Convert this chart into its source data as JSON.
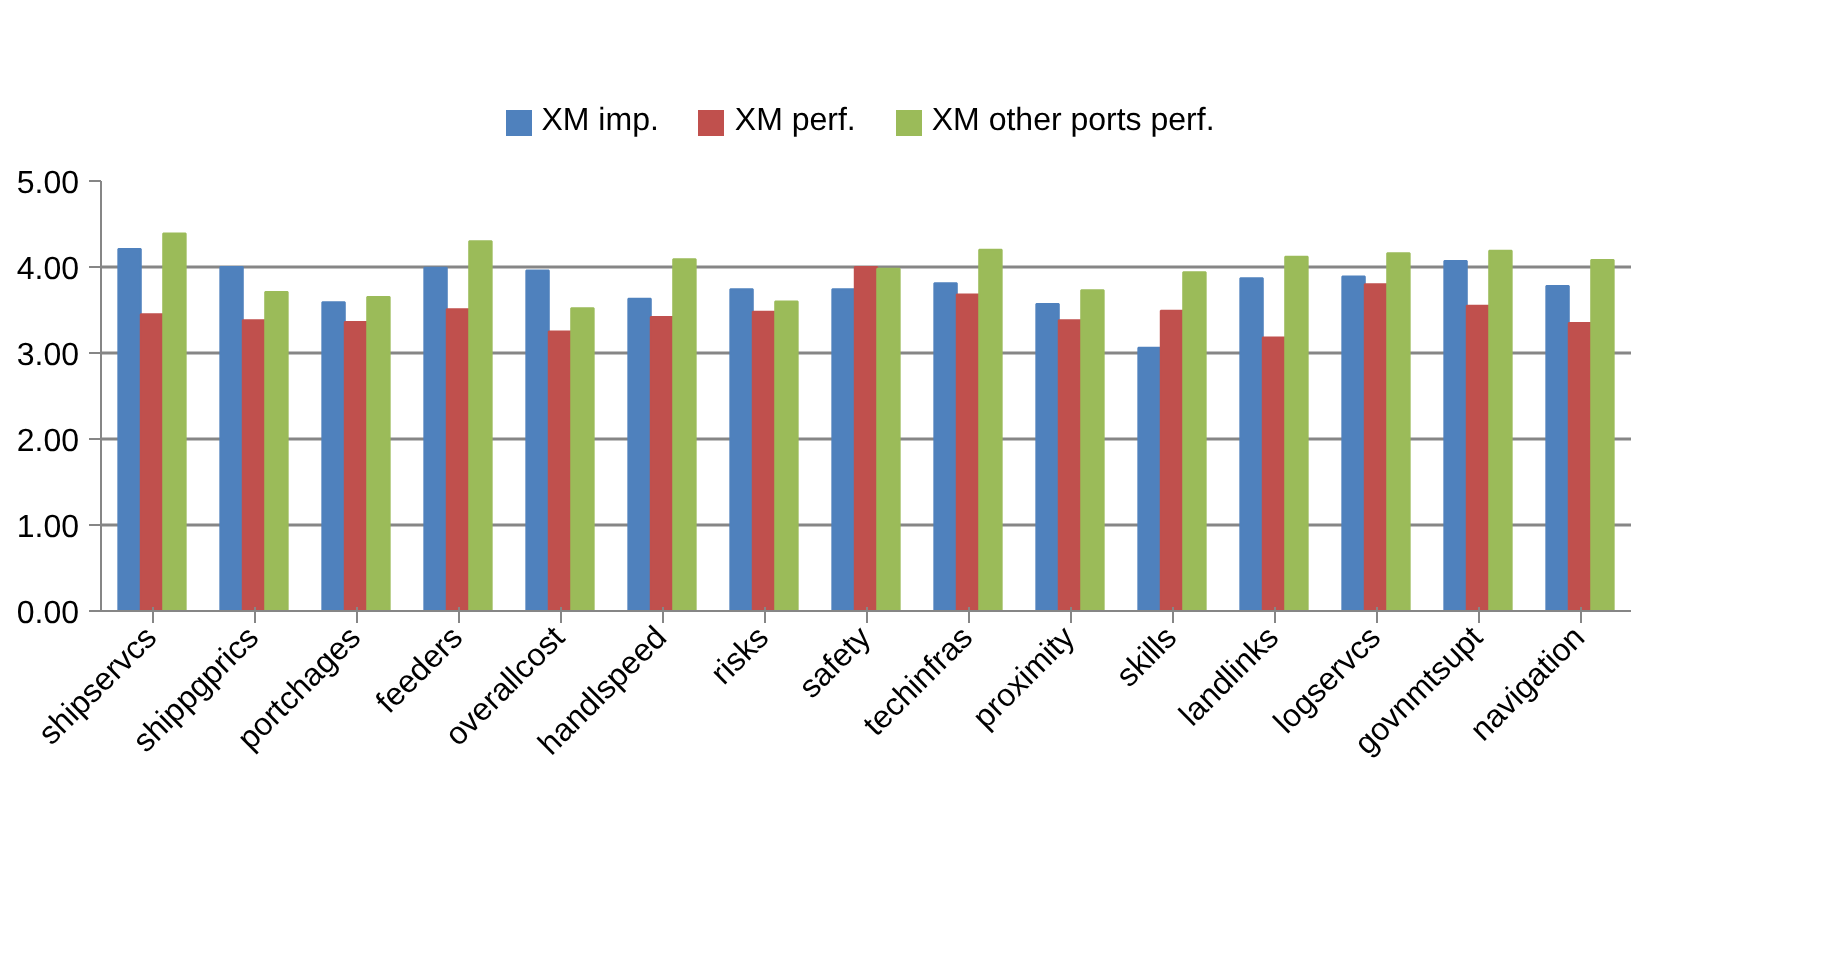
{
  "chart_data": {
    "type": "bar",
    "categories": [
      "shipservcs",
      "shippgprics",
      "portchages",
      "feeders",
      "overallcost",
      "handlspeed",
      "risks",
      "safety",
      "techinfras",
      "proximity",
      "skills",
      "landlinks",
      "logservcs",
      "govnmtsupt",
      "navigation"
    ],
    "series": [
      {
        "name": "XM imp.",
        "color": "#4f81bd",
        "values": [
          4.21,
          4.0,
          3.59,
          3.99,
          3.96,
          3.63,
          3.74,
          3.74,
          3.81,
          3.57,
          3.06,
          3.87,
          3.89,
          4.07,
          3.78
        ]
      },
      {
        "name": "XM perf.",
        "color": "#c0504d",
        "values": [
          3.45,
          3.38,
          3.36,
          3.51,
          3.25,
          3.42,
          3.48,
          4.0,
          3.68,
          3.38,
          3.49,
          3.18,
          3.8,
          3.55,
          3.35
        ]
      },
      {
        "name": "XM other ports perf.",
        "color": "#9bbb59",
        "values": [
          4.39,
          3.71,
          3.65,
          4.3,
          3.52,
          4.09,
          3.6,
          3.98,
          4.2,
          3.73,
          3.94,
          4.12,
          4.16,
          4.19,
          4.08
        ]
      }
    ],
    "ylim": [
      0,
      5
    ],
    "yticks": [
      {
        "value": 0,
        "label": "0.00"
      },
      {
        "value": 1,
        "label": "1.00"
      },
      {
        "value": 2,
        "label": "2.00"
      },
      {
        "value": 3,
        "label": "3.00"
      },
      {
        "value": 4,
        "label": "4.00"
      },
      {
        "value": 5,
        "label": "5.00"
      }
    ],
    "grid": "y",
    "legend": "top"
  }
}
